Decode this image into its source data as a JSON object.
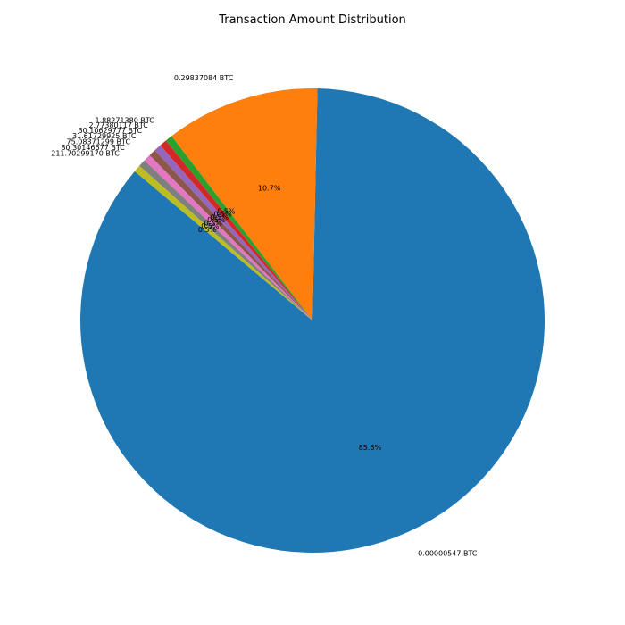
{
  "chart_data": {
    "type": "pie",
    "title": "Transaction Amount Distribution",
    "start_angle_deg": 140,
    "direction": "counterclockwise",
    "slices": [
      {
        "label": "0.00000547 BTC",
        "value": 85.6,
        "pct_label": "85.6%",
        "color": "#1f77b4"
      },
      {
        "label": "0.29837084 BTC",
        "value": 10.7,
        "pct_label": "10.7%",
        "color": "#ff7f0e"
      },
      {
        "label": "1.88271380 BTC",
        "value": 0.5,
        "pct_label": "0.5%",
        "color": "#2ca02c"
      },
      {
        "label": "2.77380117 BTC",
        "value": 0.5,
        "pct_label": "0.5%",
        "color": "#d62728"
      },
      {
        "label": "30.10629777 BTC",
        "value": 0.5,
        "pct_label": "0.5%",
        "color": "#9467bd"
      },
      {
        "label": "31.61729925 BTC",
        "value": 0.5,
        "pct_label": "0.5%",
        "color": "#8c564b"
      },
      {
        "label": "75.08371299 BTC",
        "value": 0.5,
        "pct_label": "0.5%",
        "color": "#e377c2"
      },
      {
        "label": "80.30146677 BTC",
        "value": 0.5,
        "pct_label": "0.5%",
        "color": "#7f7f7f"
      },
      {
        "label": "211.70299170 BTC",
        "value": 0.5,
        "pct_label": "0.5%",
        "color": "#bcbd22"
      }
    ]
  }
}
